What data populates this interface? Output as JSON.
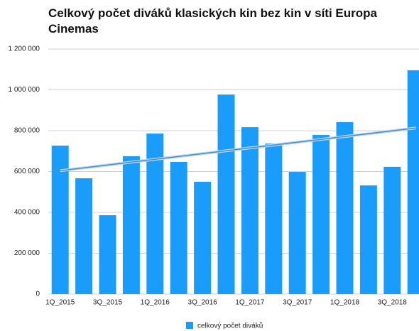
{
  "chart_data": {
    "type": "bar",
    "title": "Celkový počet diváků klasických kin bez kin v síti Europa Cinemas",
    "categories": [
      "1Q_2015",
      null,
      "3Q_2015",
      null,
      "1Q_2016",
      null,
      "3Q_2016",
      null,
      "1Q_2017",
      null,
      "3Q_2017",
      null,
      "1Q_2018",
      null,
      "3Q_2018",
      null
    ],
    "series": [
      {
        "name": "celkový počet diváků",
        "color": "#1a9cfb",
        "values": [
          727000,
          567000,
          386000,
          675000,
          786000,
          647000,
          550000,
          977000,
          817000,
          737000,
          598000,
          779000,
          842000,
          532000,
          623000,
          1096000
        ]
      }
    ],
    "ylim": [
      0,
      1200000
    ],
    "yticks": [
      0,
      {
        "value": 200000,
        "label": "200 000"
      },
      {
        "value": 400000,
        "label": "400 000"
      },
      {
        "value": 600000,
        "label": "600 000"
      },
      {
        "value": 800000,
        "label": "800 000"
      },
      {
        "value": 1000000,
        "label": "1 000 000"
      },
      {
        "value": 1200000,
        "label": "1 200 000"
      }
    ],
    "grid": true,
    "trendline": "linear",
    "trendline_color": "#4a8fcc",
    "legend": "bottom"
  }
}
